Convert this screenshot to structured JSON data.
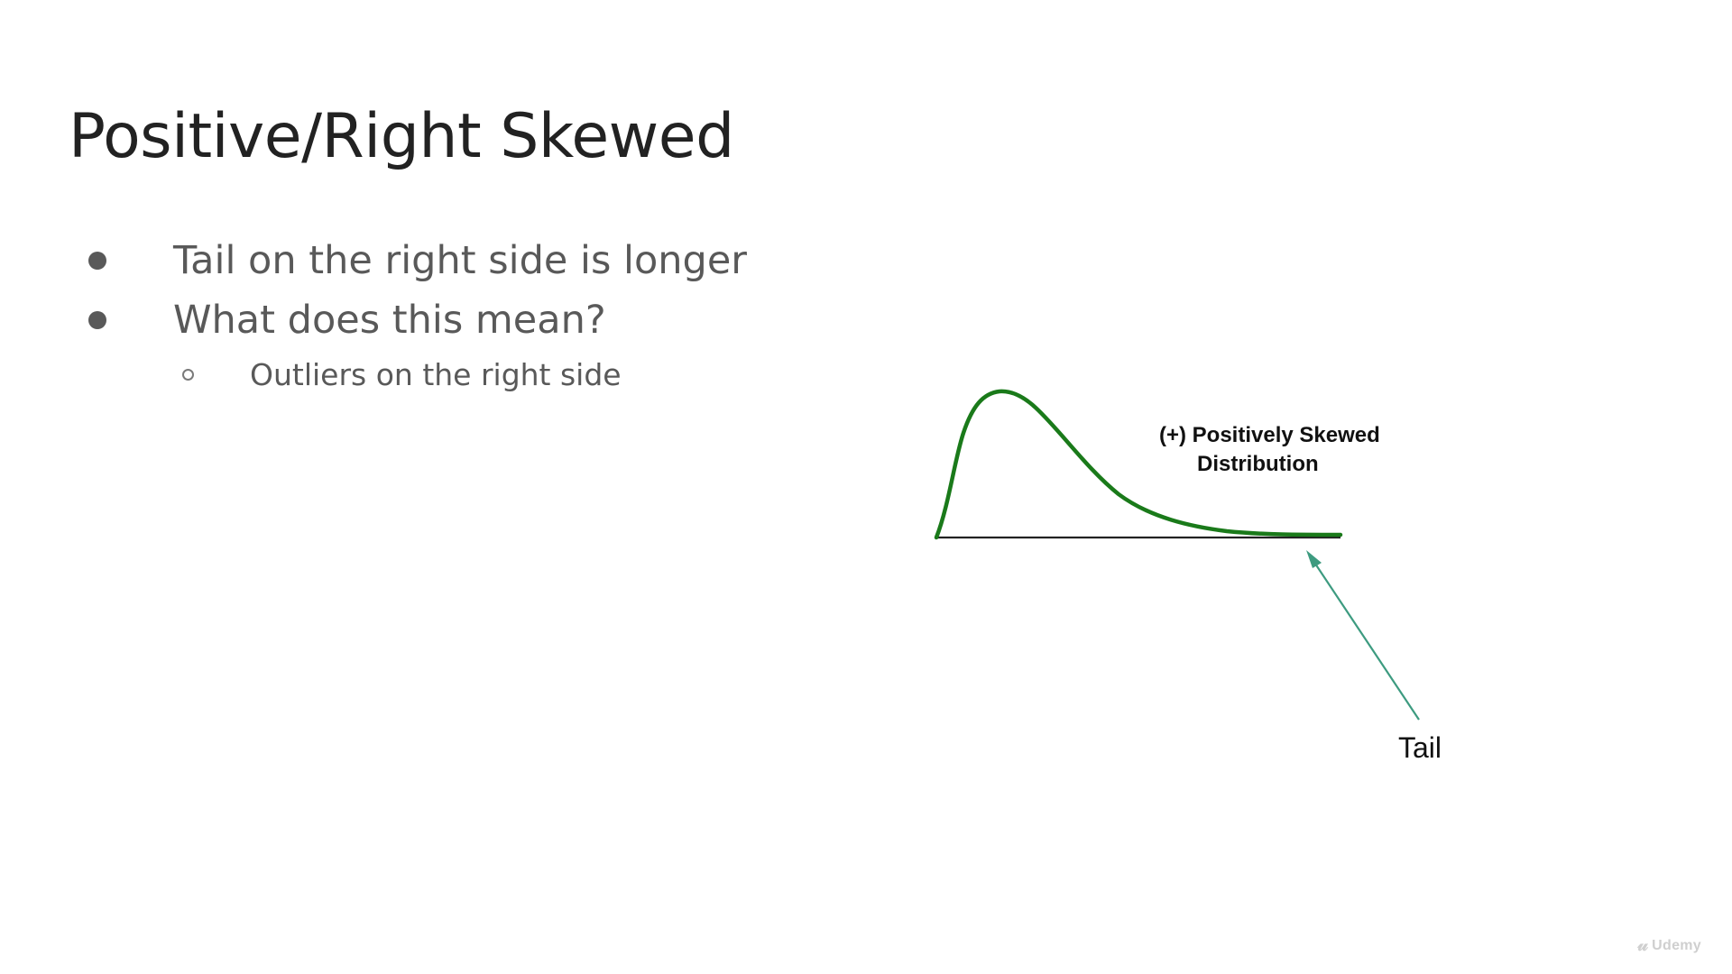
{
  "slide": {
    "title": "Positive/Right Skewed",
    "bullets": [
      {
        "text": "Tail on the right side is longer"
      },
      {
        "text": "What does this mean?"
      }
    ],
    "sub_bullets": [
      {
        "text": "Outliers on the right side"
      }
    ]
  },
  "figure": {
    "label_line1": "(+) Positively Skewed",
    "label_line2": "Distribution",
    "tail_label": "Tail",
    "curve_color": "#1a7a1a",
    "arrow_color": "#3d9b80",
    "axis_color": "#222222"
  },
  "watermark": {
    "icon": "udemy-logo-icon",
    "text": "Udemy"
  }
}
